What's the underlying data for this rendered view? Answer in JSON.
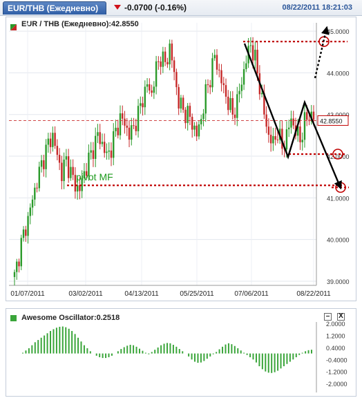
{
  "header": {
    "symbol_tab": "EUR/THB (Ежедневно)",
    "change": "-0.0700 (-0.16%)",
    "timestamp": "08/22/2011 18:21:03"
  },
  "main_panel": {
    "title": "EUR / THB (Ежедневно):42.8550"
  },
  "osc_panel": {
    "title": "Awesome Oscillator:0.2518",
    "minimize_label": "–",
    "close_label": "X"
  },
  "colors": {
    "up_candle": "#2a9a2a",
    "down_candle": "#c62828",
    "annotation_red": "#c00000",
    "annotation_arrow": "#000000",
    "osc_bar": "#3aa53a",
    "price_tag_border": "#c00000"
  },
  "chart_data": [
    {
      "type": "candlestick",
      "title": "EUR / THB (Ежедневно):42.8550",
      "last_price": 42.855,
      "last_price_label": "42.8550",
      "ylim": [
        38.9,
        45.2
      ],
      "y_ticks": [
        39.0,
        40.0,
        41.0,
        42.0,
        43.0,
        44.0,
        45.0
      ],
      "y_tick_labels": [
        "39.0000",
        "40.0000",
        "41.0000",
        "42.0000",
        "43.0000",
        "44.0000",
        "45.0000"
      ],
      "x_tick_labels": [
        "01/07/2011",
        "03/02/2011",
        "04/13/2011",
        "05/25/2011",
        "07/06/2011",
        "08/22/2011"
      ],
      "close_path": [
        [
          0,
          39.1
        ],
        [
          3,
          39.9
        ],
        [
          6,
          40.5
        ],
        [
          9,
          41.2
        ],
        [
          12,
          41.8
        ],
        [
          15,
          42.3
        ],
        [
          17,
          42.5
        ],
        [
          19,
          42.0
        ],
        [
          21,
          41.6
        ],
        [
          23,
          41.9
        ],
        [
          25,
          41.6
        ],
        [
          27,
          41.3
        ],
        [
          29,
          41.2
        ],
        [
          31,
          41.6
        ],
        [
          33,
          41.9
        ],
        [
          35,
          42.2
        ],
        [
          37,
          42.5
        ],
        [
          39,
          42.3
        ],
        [
          41,
          42.0
        ],
        [
          43,
          42.2
        ],
        [
          45,
          42.6
        ],
        [
          47,
          42.9
        ],
        [
          49,
          42.8
        ],
        [
          51,
          42.5
        ],
        [
          53,
          42.7
        ],
        [
          55,
          43.0
        ],
        [
          57,
          43.4
        ],
        [
          59,
          43.7
        ],
        [
          61,
          43.5
        ],
        [
          63,
          44.1
        ],
        [
          65,
          44.4
        ],
        [
          67,
          44.2
        ],
        [
          69,
          44.6
        ],
        [
          71,
          44.0
        ],
        [
          73,
          43.3
        ],
        [
          75,
          43.1
        ],
        [
          77,
          43.0
        ],
        [
          79,
          42.8
        ],
        [
          81,
          42.5
        ],
        [
          83,
          42.9
        ],
        [
          85,
          43.5
        ],
        [
          87,
          43.9
        ],
        [
          89,
          44.4
        ],
        [
          91,
          44.0
        ],
        [
          93,
          43.6
        ],
        [
          95,
          43.3
        ],
        [
          97,
          43.0
        ],
        [
          99,
          43.3
        ],
        [
          101,
          43.8
        ],
        [
          103,
          44.3
        ],
        [
          105,
          44.7
        ],
        [
          107,
          44.3
        ],
        [
          109,
          43.7
        ],
        [
          111,
          43.0
        ],
        [
          113,
          42.5
        ],
        [
          115,
          42.3
        ],
        [
          117,
          42.6
        ],
        [
          119,
          42.2
        ],
        [
          121,
          42.5
        ],
        [
          123,
          42.9
        ],
        [
          125,
          42.6
        ],
        [
          127,
          42.4
        ],
        [
          129,
          42.8
        ],
        [
          131,
          43.0
        ],
        [
          133,
          42.9
        ]
      ],
      "annotations": [
        {
          "type": "text",
          "text": "pivot MF"
        },
        {
          "type": "horizontal_dotted",
          "level": 41.3
        },
        {
          "type": "horizontal_dotted",
          "level": 44.75
        },
        {
          "type": "horizontal_dotted",
          "level": 42.05
        },
        {
          "type": "horizontal_dotted",
          "level": 41.25
        },
        {
          "type": "circle",
          "level": 44.75
        },
        {
          "type": "circle",
          "level": 42.05
        },
        {
          "type": "circle",
          "level": 41.25
        }
      ]
    },
    {
      "type": "bar",
      "title": "Awesome Oscillator:0.2518",
      "ylim": [
        -2.6,
        2.1
      ],
      "y_ticks": [
        2.0,
        1.2,
        0.4,
        -0.4,
        -1.2,
        -2.0
      ],
      "y_tick_labels": [
        "2.0000",
        "1.2000",
        "0.4000",
        "-0.4000",
        "-1.2000",
        "-2.0000"
      ],
      "values": [
        0.05,
        0.2,
        0.35,
        0.55,
        0.75,
        0.9,
        1.05,
        1.2,
        1.35,
        1.5,
        1.62,
        1.72,
        1.78,
        1.8,
        1.75,
        1.65,
        1.5,
        1.3,
        1.05,
        0.8,
        0.55,
        0.35,
        0.15,
        0.0,
        -0.15,
        -0.25,
        -0.3,
        -0.3,
        -0.25,
        -0.15,
        0.0,
        0.15,
        0.3,
        0.42,
        0.52,
        0.58,
        0.55,
        0.45,
        0.32,
        0.18,
        0.05,
        -0.05,
        0.1,
        0.25,
        0.4,
        0.55,
        0.65,
        0.7,
        0.68,
        0.58,
        0.45,
        0.3,
        0.15,
        0.0,
        -0.2,
        -0.4,
        -0.55,
        -0.62,
        -0.6,
        -0.5,
        -0.35,
        -0.2,
        -0.05,
        0.1,
        0.28,
        0.45,
        0.6,
        0.68,
        0.62,
        0.5,
        0.35,
        0.2,
        0.05,
        -0.1,
        -0.25,
        -0.4,
        -0.6,
        -0.85,
        -1.05,
        -1.2,
        -1.28,
        -1.3,
        -1.25,
        -1.15,
        -1.0,
        -0.85,
        -0.7,
        -0.55,
        -0.4,
        -0.25,
        -0.1,
        0.05,
        0.15,
        0.22,
        0.25
      ]
    }
  ]
}
